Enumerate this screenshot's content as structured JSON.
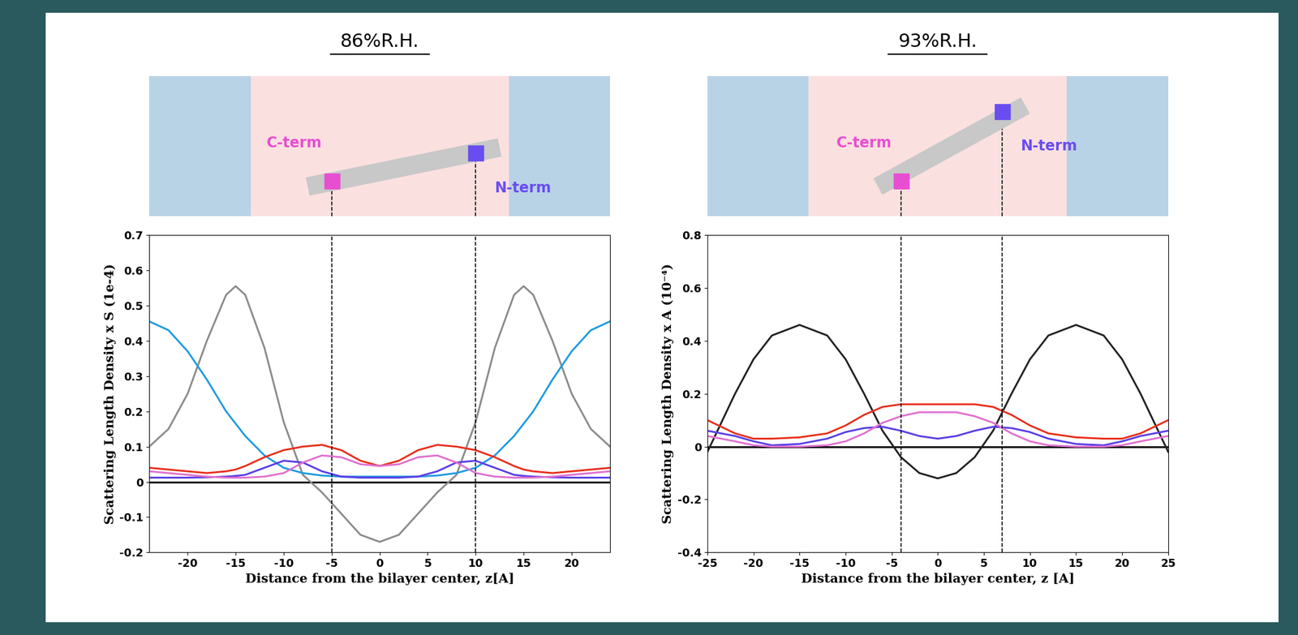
{
  "chart_data": [
    {
      "type": "line",
      "title": "86%R.H.",
      "x_label": "Distance from the bilayer center, z[A]",
      "y_label": "Scattering Length Density x S (1e-4)",
      "xlim": [
        -24,
        24
      ],
      "ylim": [
        -0.2,
        0.7
      ],
      "xticks": [
        -20,
        -15,
        -10,
        -5,
        0,
        5,
        10,
        15,
        20
      ],
      "yticks": [
        -0.2,
        -0.1,
        0,
        0.1,
        0.2,
        0.3,
        0.4,
        0.5,
        0.6,
        0.7
      ],
      "x": [
        -24,
        -22,
        -20,
        -18,
        -16,
        -15,
        -14,
        -12,
        -10,
        -8,
        -6,
        -4,
        -2,
        0,
        2,
        4,
        6,
        8,
        10,
        12,
        14,
        15,
        16,
        18,
        20,
        22,
        24
      ],
      "series": [
        {
          "color": "#000000",
          "values": [
            0,
            0,
            0,
            0,
            0,
            0,
            0,
            0,
            0,
            0,
            0,
            0,
            0,
            0,
            0,
            0,
            0,
            0,
            0,
            0,
            0,
            0,
            0,
            0,
            0,
            0,
            0
          ]
        },
        {
          "color": "#8c8c8c",
          "values": [
            0.1,
            0.15,
            0.25,
            0.4,
            0.53,
            0.555,
            0.53,
            0.38,
            0.17,
            0.02,
            -0.03,
            -0.09,
            -0.15,
            -0.17,
            -0.15,
            -0.09,
            -0.03,
            0.02,
            0.17,
            0.38,
            0.53,
            0.555,
            0.53,
            0.4,
            0.25,
            0.15,
            0.1
          ]
        },
        {
          "color": "#1f9be0",
          "values": [
            0.455,
            0.43,
            0.37,
            0.29,
            0.2,
            0.165,
            0.13,
            0.075,
            0.04,
            0.025,
            0.018,
            0.015,
            0.015,
            0.015,
            0.015,
            0.015,
            0.018,
            0.025,
            0.04,
            0.075,
            0.13,
            0.165,
            0.2,
            0.29,
            0.37,
            0.43,
            0.455
          ]
        },
        {
          "color": "#e8301c",
          "values": [
            0.04,
            0.035,
            0.03,
            0.025,
            0.03,
            0.035,
            0.045,
            0.07,
            0.09,
            0.1,
            0.105,
            0.09,
            0.06,
            0.045,
            0.06,
            0.09,
            0.105,
            0.1,
            0.09,
            0.07,
            0.045,
            0.035,
            0.03,
            0.025,
            0.03,
            0.035,
            0.04
          ]
        },
        {
          "color": "#5a3fe6",
          "values": [
            0.012,
            0.012,
            0.012,
            0.013,
            0.015,
            0.017,
            0.02,
            0.04,
            0.06,
            0.055,
            0.03,
            0.015,
            0.012,
            0.012,
            0.012,
            0.015,
            0.03,
            0.055,
            0.06,
            0.04,
            0.02,
            0.017,
            0.015,
            0.013,
            0.012,
            0.012,
            0.012
          ]
        },
        {
          "color": "#e070d0",
          "values": [
            0.03,
            0.025,
            0.02,
            0.015,
            0.012,
            0.012,
            0.012,
            0.015,
            0.025,
            0.055,
            0.075,
            0.07,
            0.05,
            0.045,
            0.05,
            0.07,
            0.075,
            0.055,
            0.025,
            0.015,
            0.012,
            0.012,
            0.012,
            0.015,
            0.02,
            0.025,
            0.03
          ]
        }
      ],
      "annotations": [
        {
          "text": "C-term",
          "z": -5,
          "color": "#e84fd0"
        },
        {
          "text": "N-term",
          "z": 10,
          "color": "#6a4df0"
        }
      ]
    },
    {
      "type": "line",
      "title": "93%R.H.",
      "x_label": "Distance from the bilayer center, z [A]",
      "y_label": "Scattering Length Density x A (10⁻⁴)",
      "xlim": [
        -25,
        25
      ],
      "ylim": [
        -0.4,
        0.8
      ],
      "xticks": [
        -25,
        -20,
        -15,
        -10,
        -5,
        0,
        5,
        10,
        15,
        20,
        25
      ],
      "yticks": [
        -0.4,
        -0.2,
        0,
        0.2,
        0.4,
        0.6,
        0.8
      ],
      "x": [
        -25,
        -22,
        -20,
        -18,
        -15,
        -12,
        -10,
        -8,
        -6,
        -4,
        -2,
        0,
        2,
        4,
        6,
        8,
        10,
        12,
        15,
        18,
        20,
        22,
        25
      ],
      "series": [
        {
          "color": "#000000",
          "values": [
            0,
            0,
            0,
            0,
            0,
            0,
            0,
            0,
            0,
            0,
            0,
            0,
            0,
            0,
            0,
            0,
            0,
            0,
            0,
            0,
            0,
            0,
            0
          ]
        },
        {
          "color": "#222222",
          "values": [
            -0.02,
            0.2,
            0.33,
            0.42,
            0.46,
            0.42,
            0.33,
            0.2,
            0.06,
            -0.04,
            -0.1,
            -0.12,
            -0.1,
            -0.04,
            0.06,
            0.2,
            0.33,
            0.42,
            0.46,
            0.42,
            0.33,
            0.2,
            -0.02
          ]
        },
        {
          "color": "#e8301c",
          "values": [
            0.1,
            0.05,
            0.03,
            0.03,
            0.035,
            0.05,
            0.08,
            0.12,
            0.15,
            0.16,
            0.16,
            0.16,
            0.16,
            0.16,
            0.15,
            0.12,
            0.08,
            0.05,
            0.035,
            0.03,
            0.03,
            0.05,
            0.1
          ]
        },
        {
          "color": "#5a3fe6",
          "values": [
            0.06,
            0.04,
            0.02,
            0.005,
            0.01,
            0.03,
            0.055,
            0.07,
            0.075,
            0.06,
            0.04,
            0.03,
            0.04,
            0.06,
            0.075,
            0.07,
            0.055,
            0.03,
            0.01,
            0.005,
            0.02,
            0.04,
            0.06
          ]
        },
        {
          "color": "#e070d0",
          "values": [
            0.04,
            0.02,
            0.005,
            0.0,
            0.0,
            0.005,
            0.02,
            0.05,
            0.09,
            0.115,
            0.13,
            0.13,
            0.13,
            0.115,
            0.09,
            0.05,
            0.02,
            0.005,
            0.0,
            0.0,
            0.005,
            0.02,
            0.04
          ]
        }
      ],
      "annotations": [
        {
          "text": "C-term",
          "z": -4,
          "color": "#e84fd0"
        },
        {
          "text": "N-term",
          "z": 7,
          "color": "#6a4df0"
        }
      ]
    }
  ]
}
